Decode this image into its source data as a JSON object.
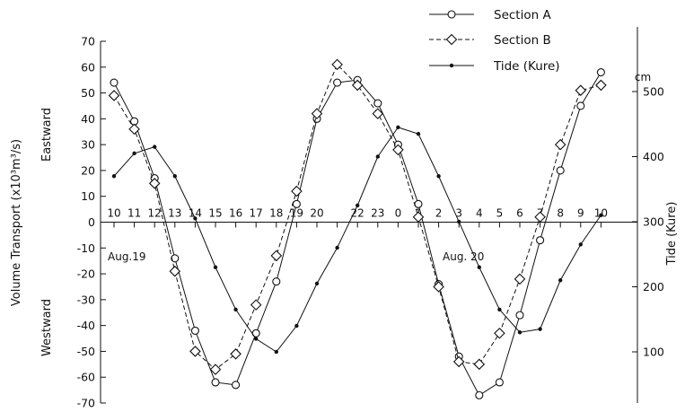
{
  "chart_data": {
    "type": "line",
    "title": "",
    "ylabel_left": "Volume Transport (x10³m³/s)",
    "ylabel_right": "Tide (Kure)",
    "right_unit": "cm",
    "direction_up": "Eastward",
    "direction_down": "Westward",
    "date_labels": [
      "Aug.19",
      "Aug. 20"
    ],
    "x_tick_labels": [
      "10",
      "11",
      "12",
      "13",
      "14",
      "15",
      "16",
      "17",
      "18",
      "19",
      "20",
      "",
      "22",
      "23",
      "0",
      "1",
      "2",
      "3",
      "4",
      "5",
      "6",
      "7",
      "8",
      "9",
      "10"
    ],
    "x_hours": [
      10,
      11,
      12,
      13,
      14,
      15,
      16,
      17,
      18,
      19,
      20,
      21,
      22,
      23,
      24,
      25,
      26,
      27,
      28,
      29,
      30,
      31,
      32,
      33,
      34
    ],
    "ylim_left": [
      -70,
      70
    ],
    "y_ticks_left": [
      -70,
      -60,
      -50,
      -40,
      -30,
      -20,
      -10,
      0,
      10,
      20,
      30,
      40,
      50,
      60,
      70
    ],
    "ylim_right": [
      50,
      550
    ],
    "y_ticks_right": [
      100,
      200,
      300,
      400,
      500
    ],
    "grid": false,
    "legend_position": "top-right",
    "series": [
      {
        "name": "Section A",
        "marker": "circle",
        "line_style": "solid",
        "points": [
          [
            10,
            54
          ],
          [
            11,
            39
          ],
          [
            12,
            17
          ],
          [
            13,
            -14
          ],
          [
            14,
            -42
          ],
          [
            15,
            -62
          ],
          [
            16,
            -63
          ],
          [
            17,
            -43
          ],
          [
            18,
            -23
          ],
          [
            19,
            7
          ],
          [
            20,
            40
          ],
          [
            21,
            54
          ],
          [
            22,
            55
          ],
          [
            23,
            46
          ],
          [
            24,
            30
          ],
          [
            25,
            7
          ],
          [
            26,
            -24
          ],
          [
            27,
            -52
          ],
          [
            28,
            -67
          ],
          [
            29,
            -62
          ],
          [
            30,
            -36
          ],
          [
            31,
            -7
          ],
          [
            32,
            20
          ],
          [
            33,
            45
          ],
          [
            34,
            58
          ]
        ]
      },
      {
        "name": "Section B",
        "marker": "diamond",
        "line_style": "dashed",
        "points": [
          [
            10,
            49
          ],
          [
            11,
            36
          ],
          [
            12,
            15
          ],
          [
            13,
            -19
          ],
          [
            14,
            -50
          ],
          [
            15,
            -57
          ],
          [
            16,
            -51
          ],
          [
            17,
            -32
          ],
          [
            18,
            -13
          ],
          [
            19,
            12
          ],
          [
            20,
            42
          ],
          [
            21,
            61
          ],
          [
            22,
            53
          ],
          [
            23,
            42
          ],
          [
            24,
            28
          ],
          [
            25,
            2
          ],
          [
            26,
            -25
          ],
          [
            27,
            -54
          ],
          [
            28,
            -55
          ],
          [
            29,
            -43
          ],
          [
            30,
            -22
          ],
          [
            31,
            2
          ],
          [
            32,
            30
          ],
          [
            33,
            51
          ],
          [
            34,
            53
          ]
        ]
      },
      {
        "name": "Tide (Kure)",
        "marker": "dot",
        "line_style": "solid",
        "axis": "right",
        "points": [
          [
            10,
            370
          ],
          [
            11,
            405
          ],
          [
            12,
            415
          ],
          [
            13,
            370
          ],
          [
            14,
            305
          ],
          [
            15,
            230
          ],
          [
            16,
            165
          ],
          [
            17,
            120
          ],
          [
            18,
            100
          ],
          [
            19,
            140
          ],
          [
            20,
            205
          ],
          [
            21,
            260
          ],
          [
            22,
            325
          ],
          [
            23,
            400
          ],
          [
            24,
            445
          ],
          [
            25,
            435
          ],
          [
            26,
            370
          ],
          [
            27,
            300
          ],
          [
            28,
            230
          ],
          [
            29,
            165
          ],
          [
            30,
            130
          ],
          [
            31,
            135
          ],
          [
            32,
            210
          ],
          [
            33,
            265
          ],
          [
            34,
            310
          ]
        ]
      }
    ]
  }
}
